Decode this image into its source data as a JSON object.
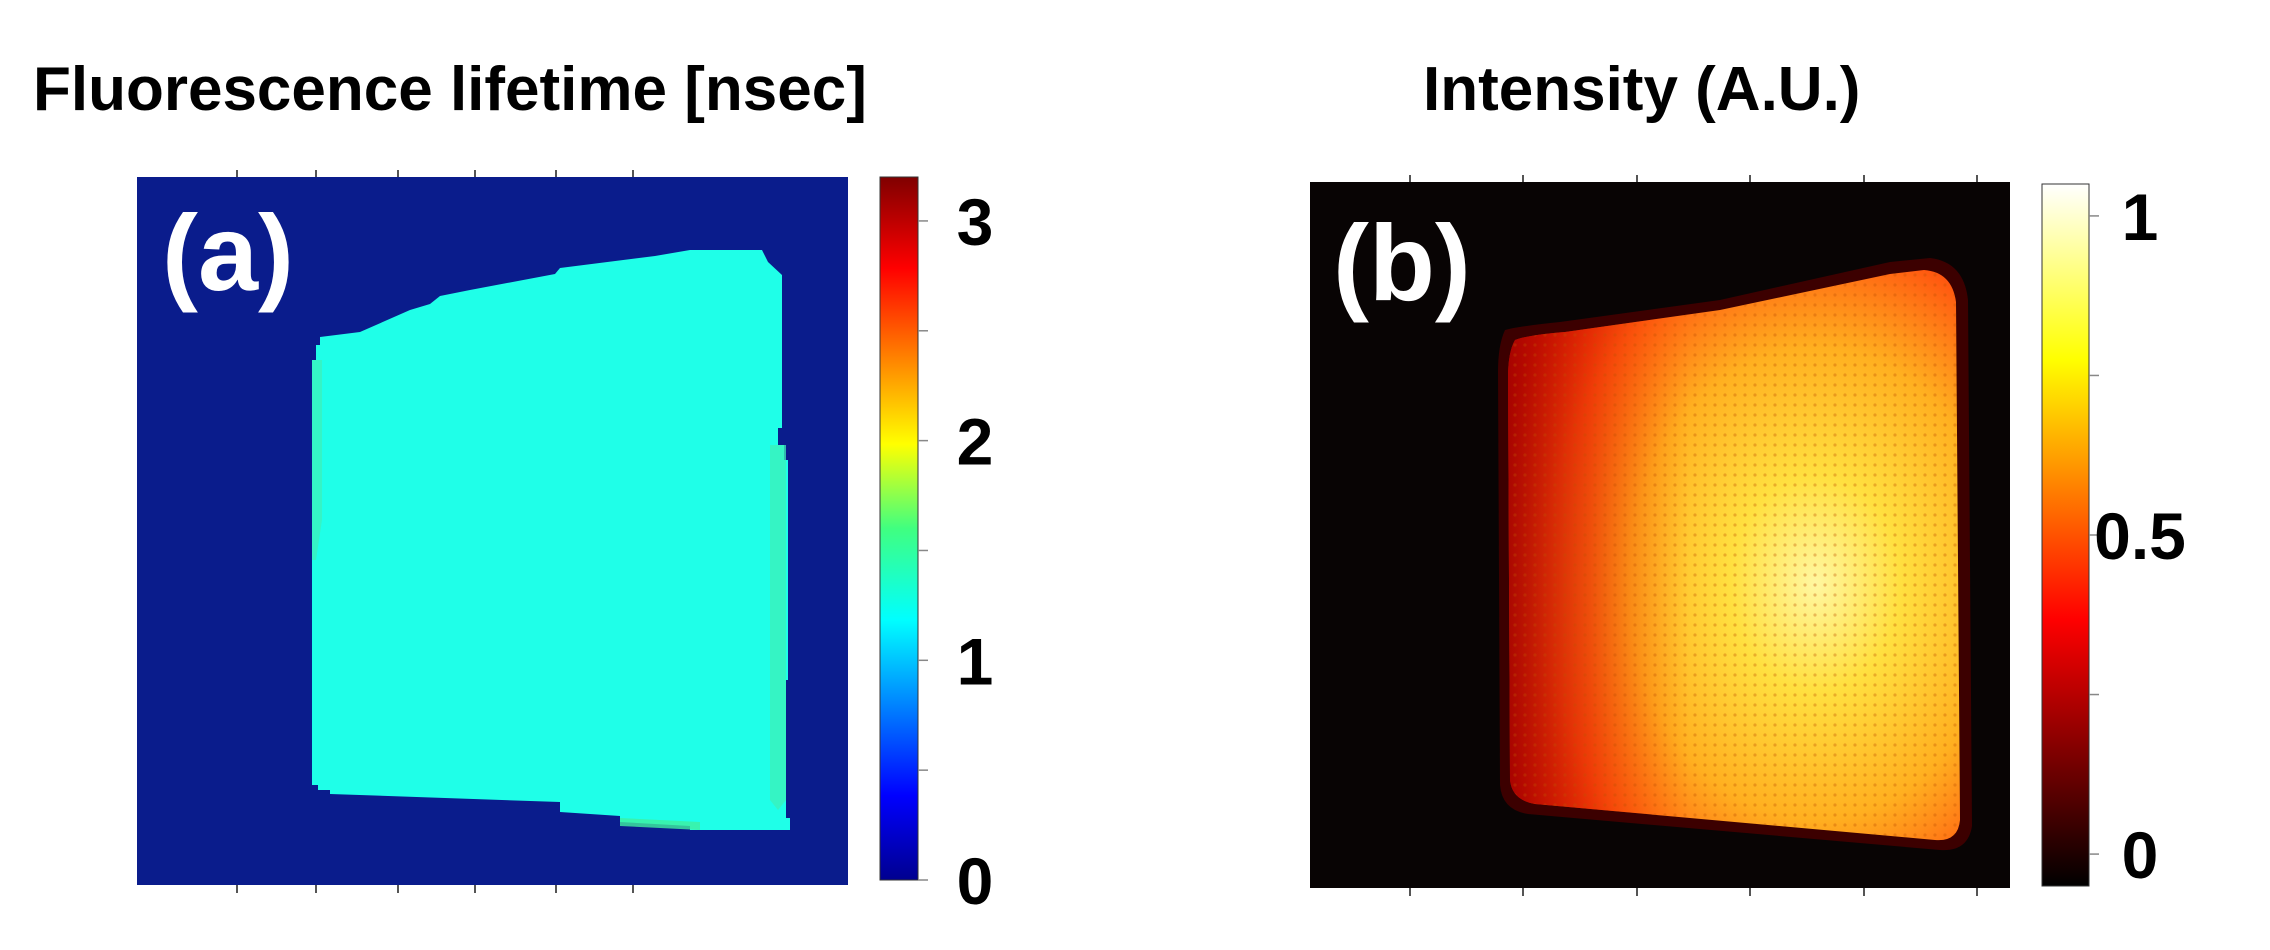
{
  "chart_data": [
    {
      "type": "heatmap",
      "title": "Fluorescence lifetime [nsec]",
      "panel_label": "(a)",
      "colormap": "jet",
      "colorbar": {
        "range": [
          0,
          3.2
        ],
        "tick_labels": [
          {
            "value": 0,
            "label": "0"
          },
          {
            "value": 1,
            "label": "1"
          },
          {
            "value": 2,
            "label": "2"
          },
          {
            "value": 3,
            "label": "3"
          }
        ],
        "minor_ticks": [
          0,
          0.5,
          1,
          1.5,
          2,
          2.5,
          3
        ]
      },
      "background_value": 0,
      "region_value": 1.05,
      "edge_value": 1.45,
      "x_ticks_count": 6
    },
    {
      "type": "heatmap",
      "title": "Intensity (A.U.)",
      "panel_label": "(b)",
      "colormap": "hot",
      "colorbar": {
        "range": [
          -0.05,
          1.05
        ],
        "tick_labels": [
          {
            "value": 0,
            "label": "0"
          },
          {
            "value": 0.5,
            "label": "0.5"
          },
          {
            "value": 1,
            "label": "1"
          }
        ],
        "minor_ticks": [
          0,
          0.25,
          0.5,
          0.75,
          1
        ]
      },
      "background_value": 0,
      "region_center_value": 0.85,
      "region_edge_value": 0.45,
      "x_ticks_count": 6
    }
  ]
}
